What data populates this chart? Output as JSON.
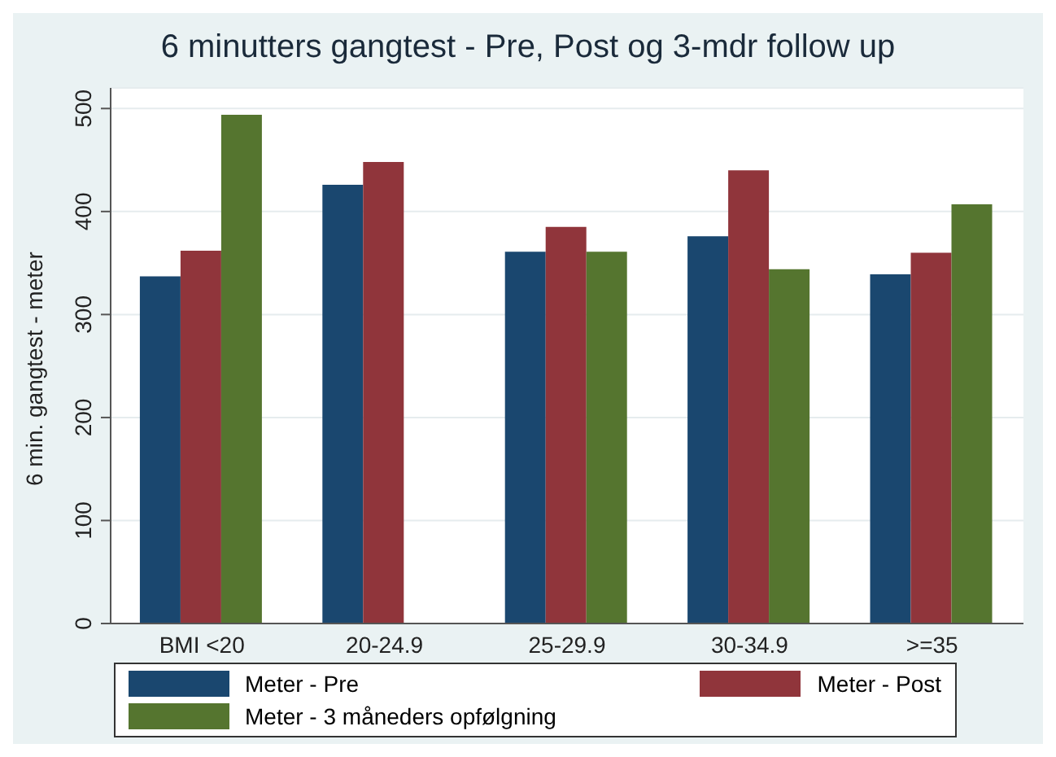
{
  "chart_data": {
    "type": "bar",
    "title": "6 minutters gangtest - Pre, Post og 3-mdr follow up",
    "ylabel": "6 min. gangtest - meter",
    "categories": [
      "BMI <20",
      "20-24.9",
      "25-29.9",
      "30-34.9",
      ">=35"
    ],
    "series": [
      {
        "name": "Meter - Pre",
        "color": "#1a476f",
        "values": [
          337,
          426,
          361,
          376,
          339
        ]
      },
      {
        "name": "Meter - Post",
        "color": "#90353b",
        "values": [
          362,
          448,
          385,
          440,
          360
        ]
      },
      {
        "name": "Meter - 3 måneders opfølgning",
        "color": "#55752f",
        "values": [
          494,
          null,
          361,
          344,
          407
        ]
      }
    ],
    "ylim": [
      0,
      520
    ],
    "yticks": [
      0,
      100,
      200,
      300,
      400,
      500
    ],
    "grid": "y",
    "legend": "bottom"
  }
}
